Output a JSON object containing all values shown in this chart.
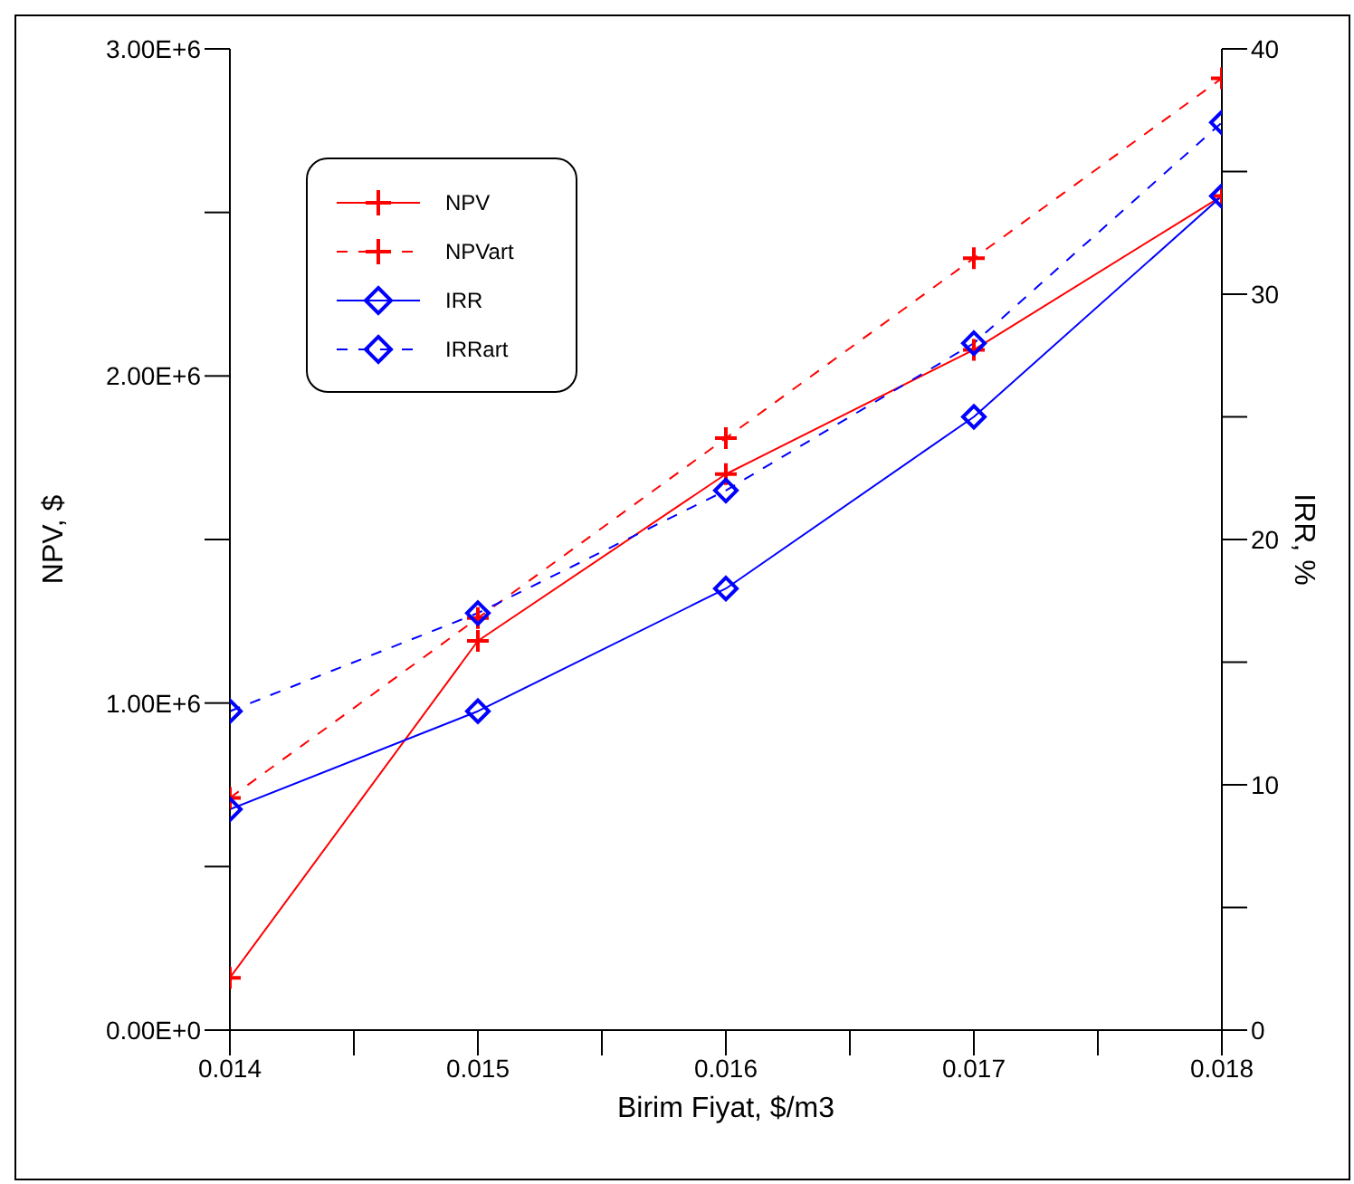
{
  "chart_data": {
    "type": "line",
    "xlabel": "Birim Fiyat, $/m3",
    "ylabel": "NPV, $",
    "y2label": "IRR, %",
    "x": [
      0.014,
      0.015,
      0.016,
      0.017,
      0.018
    ],
    "xlim": [
      0.014,
      0.018
    ],
    "xticks": [
      0.014,
      {
        "value": 0.0145,
        "label": null
      },
      0.015,
      {
        "value": 0.0155,
        "label": null
      },
      0.016,
      {
        "value": 0.0165,
        "label": null
      },
      0.017,
      {
        "value": 0.0175,
        "label": null
      },
      0.018
    ],
    "ylim": [
      0,
      3000000
    ],
    "yticks": [
      {
        "value": 0,
        "label": "0.00E+0"
      },
      {
        "value": 500000,
        "label": null
      },
      {
        "value": 1000000,
        "label": "1.00E+6"
      },
      {
        "value": 1500000,
        "label": null
      },
      {
        "value": 2000000,
        "label": "2.00E+6"
      },
      {
        "value": 2500000,
        "label": null
      },
      {
        "value": 3000000,
        "label": "3.00E+6"
      }
    ],
    "y2lim": [
      0,
      40
    ],
    "y2ticks": [
      0,
      {
        "value": 5,
        "label": null
      },
      10,
      {
        "value": 15,
        "label": null
      },
      20,
      {
        "value": 25,
        "label": null
      },
      30,
      {
        "value": 35,
        "label": null
      },
      40
    ],
    "grid": false,
    "legend": "top left",
    "series": [
      {
        "name": "NPV",
        "color": "#ff0000",
        "marker": "cross",
        "line_style": "solid",
        "values": [
          160000,
          1190000,
          1700000,
          2080000,
          2550000
        ]
      },
      {
        "name": "NPVart",
        "color": "#ff0000",
        "marker": "cross",
        "line_style": "dashed",
        "values": [
          710000,
          1260000,
          1810000,
          2360000,
          2910000
        ]
      },
      {
        "name": "IRR",
        "color": "#0000ff",
        "marker": "diamond",
        "line_style": "solid",
        "axis": "y2",
        "values": [
          9,
          13,
          18,
          25,
          34
        ]
      },
      {
        "name": "IRRart",
        "color": "#0000ff",
        "marker": "diamond",
        "line_style": "dashed",
        "axis": "y2",
        "values": [
          13,
          17,
          22,
          28,
          37
        ]
      }
    ]
  }
}
